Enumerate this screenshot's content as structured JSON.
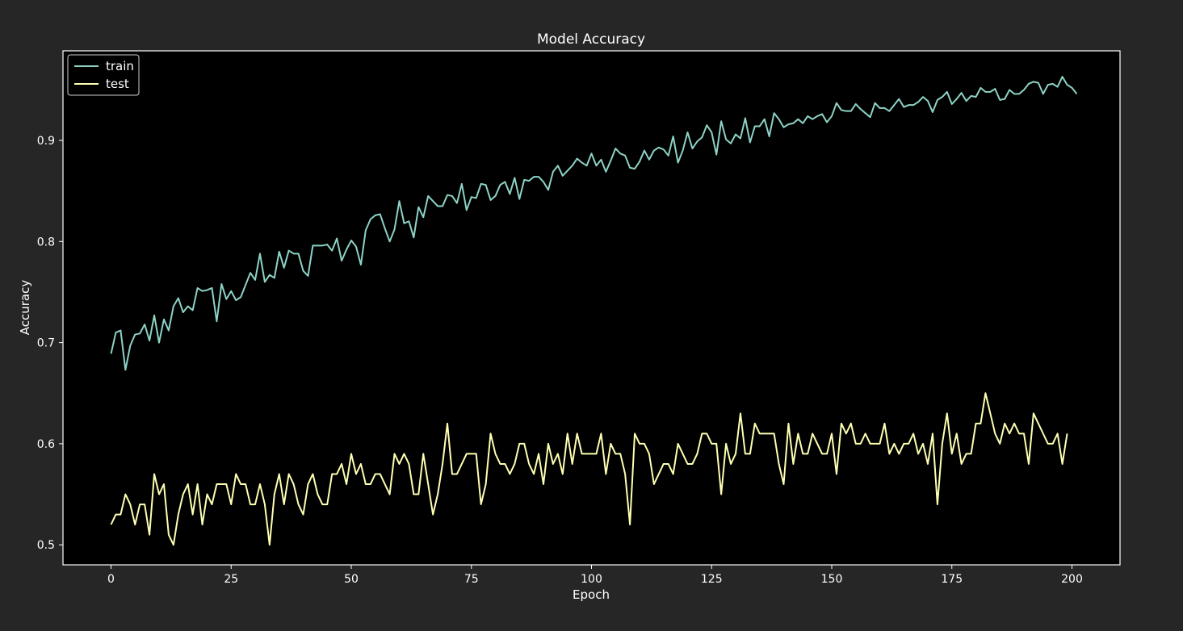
{
  "chart_data": {
    "type": "line",
    "title": "Model Accuracy",
    "xlabel": "Epoch",
    "ylabel": "Accuracy",
    "xlim": [
      -10,
      210
    ],
    "ylim": [
      0.4802,
      0.9886
    ],
    "xticks": [
      0,
      25,
      50,
      75,
      100,
      125,
      150,
      175,
      200
    ],
    "yticks": [
      0.5,
      0.6,
      0.7,
      0.8,
      0.9
    ],
    "grid": false,
    "legend_placement": "upper-left",
    "colors": {
      "figure_background": "#262626",
      "axes_background": "#000000",
      "axes_border": "#ffffff",
      "text": "#ffffff"
    },
    "series": [
      {
        "name": "train",
        "color": "#8dd3c7",
        "values": [
          0.689,
          0.71,
          0.712,
          0.673,
          0.697,
          0.708,
          0.709,
          0.718,
          0.702,
          0.727,
          0.7,
          0.723,
          0.712,
          0.736,
          0.744,
          0.73,
          0.736,
          0.732,
          0.754,
          0.751,
          0.752,
          0.754,
          0.721,
          0.758,
          0.743,
          0.751,
          0.742,
          0.745,
          0.757,
          0.769,
          0.762,
          0.788,
          0.76,
          0.767,
          0.764,
          0.79,
          0.774,
          0.791,
          0.788,
          0.788,
          0.771,
          0.766,
          0.796,
          0.796,
          0.796,
          0.797,
          0.791,
          0.803,
          0.781,
          0.792,
          0.801,
          0.795,
          0.777,
          0.811,
          0.822,
          0.826,
          0.827,
          0.813,
          0.8,
          0.812,
          0.84,
          0.818,
          0.82,
          0.804,
          0.834,
          0.824,
          0.845,
          0.84,
          0.835,
          0.835,
          0.846,
          0.845,
          0.838,
          0.857,
          0.831,
          0.844,
          0.843,
          0.857,
          0.856,
          0.841,
          0.845,
          0.856,
          0.859,
          0.847,
          0.863,
          0.842,
          0.861,
          0.86,
          0.864,
          0.864,
          0.859,
          0.851,
          0.869,
          0.875,
          0.865,
          0.87,
          0.875,
          0.882,
          0.878,
          0.875,
          0.887,
          0.875,
          0.881,
          0.869,
          0.88,
          0.892,
          0.887,
          0.885,
          0.873,
          0.872,
          0.879,
          0.89,
          0.881,
          0.89,
          0.893,
          0.891,
          0.885,
          0.904,
          0.878,
          0.89,
          0.908,
          0.892,
          0.899,
          0.903,
          0.915,
          0.908,
          0.886,
          0.919,
          0.901,
          0.897,
          0.906,
          0.902,
          0.922,
          0.898,
          0.914,
          0.914,
          0.921,
          0.904,
          0.927,
          0.921,
          0.913,
          0.916,
          0.917,
          0.921,
          0.917,
          0.924,
          0.921,
          0.924,
          0.926,
          0.918,
          0.924,
          0.937,
          0.93,
          0.929,
          0.929,
          0.936,
          0.931,
          0.927,
          0.923,
          0.937,
          0.932,
          0.932,
          0.929,
          0.935,
          0.941,
          0.933,
          0.935,
          0.935,
          0.938,
          0.943,
          0.939,
          0.928,
          0.94,
          0.943,
          0.948,
          0.936,
          0.941,
          0.947,
          0.939,
          0.944,
          0.943,
          0.952,
          0.948,
          0.948,
          0.951,
          0.94,
          0.941,
          0.95,
          0.946,
          0.946,
          0.95,
          0.956,
          0.958,
          0.957,
          0.946,
          0.955,
          0.956,
          0.953,
          0.963,
          0.955,
          0.952,
          0.946
        ]
      },
      {
        "name": "test",
        "color": "#ffffb3",
        "values": [
          0.52,
          0.53,
          0.53,
          0.55,
          0.54,
          0.52,
          0.54,
          0.54,
          0.51,
          0.57,
          0.55,
          0.56,
          0.51,
          0.5,
          0.53,
          0.55,
          0.56,
          0.53,
          0.56,
          0.52,
          0.55,
          0.54,
          0.56,
          0.56,
          0.56,
          0.54,
          0.57,
          0.56,
          0.56,
          0.54,
          0.54,
          0.56,
          0.54,
          0.5,
          0.55,
          0.57,
          0.54,
          0.57,
          0.56,
          0.54,
          0.53,
          0.56,
          0.57,
          0.55,
          0.54,
          0.54,
          0.57,
          0.57,
          0.58,
          0.56,
          0.59,
          0.57,
          0.58,
          0.56,
          0.56,
          0.57,
          0.57,
          0.56,
          0.55,
          0.59,
          0.58,
          0.59,
          0.58,
          0.55,
          0.55,
          0.59,
          0.56,
          0.53,
          0.55,
          0.58,
          0.62,
          0.57,
          0.57,
          0.58,
          0.59,
          0.59,
          0.59,
          0.54,
          0.56,
          0.61,
          0.59,
          0.58,
          0.58,
          0.57,
          0.58,
          0.6,
          0.6,
          0.58,
          0.57,
          0.59,
          0.56,
          0.6,
          0.58,
          0.59,
          0.57,
          0.61,
          0.58,
          0.61,
          0.59,
          0.59,
          0.59,
          0.59,
          0.61,
          0.57,
          0.6,
          0.59,
          0.59,
          0.57,
          0.52,
          0.61,
          0.6,
          0.6,
          0.59,
          0.56,
          0.57,
          0.58,
          0.58,
          0.57,
          0.6,
          0.59,
          0.58,
          0.58,
          0.59,
          0.61,
          0.61,
          0.6,
          0.6,
          0.55,
          0.6,
          0.58,
          0.59,
          0.63,
          0.59,
          0.59,
          0.62,
          0.61,
          0.61,
          0.61,
          0.61,
          0.58,
          0.56,
          0.62,
          0.58,
          0.61,
          0.59,
          0.59,
          0.61,
          0.6,
          0.59,
          0.59,
          0.61,
          0.57,
          0.62,
          0.61,
          0.62,
          0.6,
          0.6,
          0.61,
          0.6,
          0.6,
          0.6,
          0.62,
          0.59,
          0.6,
          0.59,
          0.6,
          0.6,
          0.61,
          0.59,
          0.6,
          0.58,
          0.61,
          0.54,
          0.6,
          0.63,
          0.59,
          0.61,
          0.58,
          0.59,
          0.59,
          0.62,
          0.62,
          0.65,
          0.63,
          0.61,
          0.6,
          0.62,
          0.61,
          0.62,
          0.61,
          0.61,
          0.58,
          0.63,
          0.62,
          0.61,
          0.6,
          0.6,
          0.61,
          0.58,
          0.61
        ]
      }
    ]
  }
}
